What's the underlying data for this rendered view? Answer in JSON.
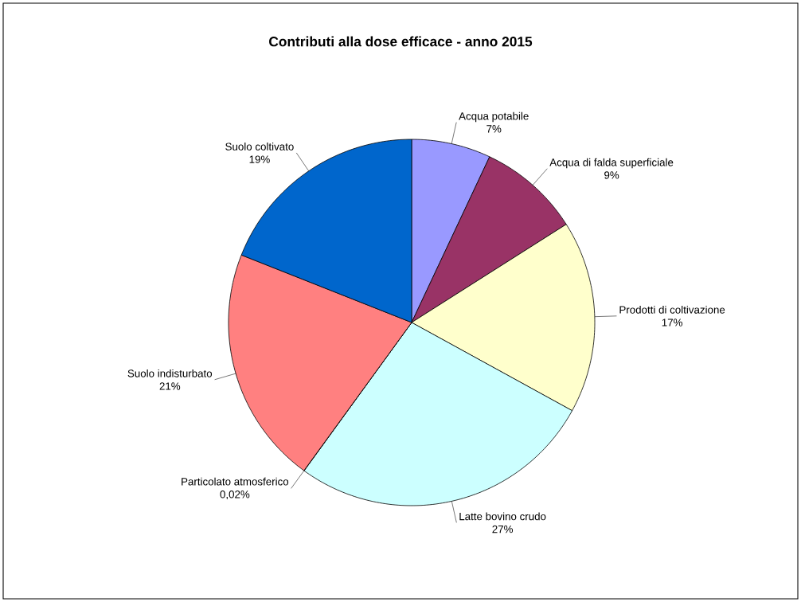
{
  "chart_data": {
    "type": "pie",
    "title": "Contributi alla dose efficace - anno 2015",
    "categories": [
      "Acqua potabile",
      "Acqua di falda superficiale",
      "Prodotti di coltivazione",
      "Latte bovino crudo",
      "Particolato atmosferico",
      "Suolo indisturbato",
      "Suolo coltivato"
    ],
    "values": [
      7,
      9,
      17,
      27,
      0.02,
      21,
      19
    ],
    "colors": [
      "#9999ff",
      "#993366",
      "#ffffcc",
      "#ccffff",
      "#ff9999",
      "#ff8080",
      "#0066cc"
    ],
    "value_labels": [
      "7%",
      "9%",
      "17%",
      "27%",
      "0,02%",
      "21%",
      "19%"
    ]
  }
}
